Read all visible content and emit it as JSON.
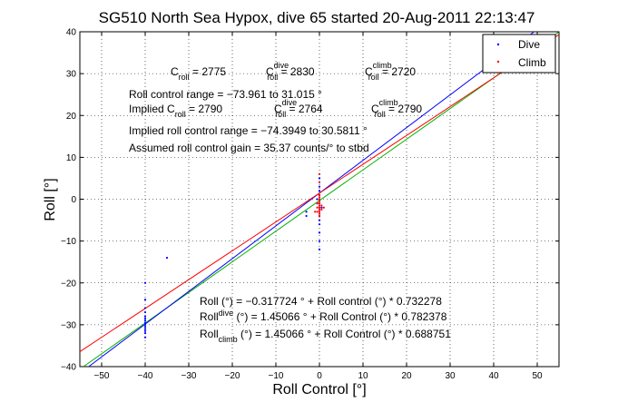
{
  "chart_data": {
    "type": "scatter",
    "title": "SG510 North Sea Hypox, dive 65 started 20-Aug-2011 22:13:47",
    "xlabel": "Roll Control [°]",
    "ylabel": "Roll [°]",
    "xlim": [
      -55,
      55
    ],
    "ylim": [
      -40,
      40
    ],
    "xticks": [
      -50,
      -40,
      -30,
      -20,
      -10,
      0,
      10,
      20,
      30,
      40,
      50
    ],
    "yticks": [
      -40,
      -30,
      -20,
      -10,
      0,
      10,
      20,
      30,
      40
    ],
    "grid": true,
    "legend_position": "top-right",
    "legend": [
      "Dive",
      "Climb"
    ],
    "colors": {
      "dive": "#0000ff",
      "climb": "#ff0000",
      "fit": "#00b000"
    },
    "series": [
      {
        "name": "Dive",
        "points": [
          [
            -40.0,
            -33.0
          ],
          [
            -40.0,
            -32.0
          ],
          [
            -40.0,
            -31.5
          ],
          [
            -40.0,
            -31.0
          ],
          [
            -40.0,
            -30.5
          ],
          [
            -40.0,
            -30.0
          ],
          [
            -40.0,
            -29.5
          ],
          [
            -40.0,
            -29.0
          ],
          [
            -40.0,
            -28.5
          ],
          [
            -40.0,
            -28.0
          ],
          [
            -40.0,
            -27.0
          ],
          [
            -40.0,
            -26.0
          ],
          [
            -40.0,
            -24.0
          ],
          [
            -40.0,
            -20.0
          ],
          [
            0.0,
            -12.0
          ],
          [
            0.0,
            -10.0
          ],
          [
            0.0,
            -8.0
          ],
          [
            0.0,
            -6.0
          ],
          [
            0.0,
            -5.0
          ],
          [
            0.0,
            -4.0
          ],
          [
            0.0,
            -3.0
          ],
          [
            0.0,
            -2.0
          ],
          [
            0.0,
            -1.0
          ],
          [
            0.0,
            0.0
          ],
          [
            0.0,
            1.0
          ],
          [
            0.0,
            2.0
          ],
          [
            0.0,
            3.0
          ],
          [
            0.0,
            5.0
          ],
          [
            -0.5,
            -1.0
          ],
          [
            -0.5,
            0.0
          ],
          [
            0.5,
            -2.0
          ],
          [
            -3.0,
            -3.0
          ],
          [
            -3.0,
            -4.0
          ],
          [
            -35.0,
            -14.0
          ]
        ]
      },
      {
        "name": "Climb",
        "points": [
          [
            0.0,
            -4.0
          ],
          [
            0.0,
            -3.5
          ],
          [
            0.0,
            -3.0
          ],
          [
            0.0,
            -2.5
          ],
          [
            0.0,
            -2.0
          ],
          [
            0.0,
            -1.5
          ],
          [
            0.0,
            -1.0
          ],
          [
            0.0,
            -0.5
          ],
          [
            0.0,
            0.0
          ],
          [
            0.0,
            0.5
          ],
          [
            0.0,
            1.0
          ],
          [
            -0.5,
            -1.0
          ],
          [
            -0.5,
            -2.0
          ],
          [
            -0.5,
            -3.0
          ],
          [
            0.5,
            -1.5
          ],
          [
            0.5,
            -2.5
          ],
          [
            0.0,
            4.0
          ],
          [
            0.0,
            6.0
          ],
          [
            -1.0,
            -3.0
          ],
          [
            1.0,
            -2.0
          ]
        ]
      }
    ],
    "fit_lines": [
      {
        "color": "green",
        "intercept": -0.317724,
        "slope": 0.732278
      },
      {
        "color": "blue",
        "intercept": 1.45066,
        "slope": 0.782378
      },
      {
        "color": "red",
        "intercept": 1.45066,
        "slope": 0.688751
      }
    ]
  },
  "annotations": {
    "c_roll": {
      "main": "C",
      "sub": "roll",
      "rest": " = 2775"
    },
    "c_roll_dive": {
      "main": "C",
      "sup": "dive",
      "sub": "roll",
      "rest": " = 2830"
    },
    "c_roll_climb": {
      "main": "C",
      "sup": "climb",
      "sub": "roll",
      "rest": " = 2720"
    },
    "range": "Roll control range = −73.961 to 31.015 °",
    "implied_prefix": "Implied C",
    "implied_c_roll_sub": "roll",
    "implied_c_roll_val": " = 2790",
    "implied_dive": {
      "main": "C",
      "sup": "dive",
      "sub": "roll",
      "rest": " = 2764"
    },
    "implied_climb": {
      "main": "C",
      "sup": "climb",
      "sub": "roll",
      "rest": " = 2790"
    },
    "implied_range": "Implied roll control range = −74.3949 to 30.5811 °",
    "gain": "Assumed roll control gain = 35.37 counts/° to stbd",
    "eq1": "Roll (°) = −0.317724 ° + Roll control (°) * 0.732278",
    "eq2_main": "Roll",
    "eq2_sub": "dive",
    "eq2_rest": " (°) = 1.45066 ° + Roll Control (°) * 0.782378",
    "eq3_main": "Roll",
    "eq3_sub": "climb",
    "eq3_rest": " (°) = 1.45066 ° + Roll Control (°) * 0.688751"
  }
}
